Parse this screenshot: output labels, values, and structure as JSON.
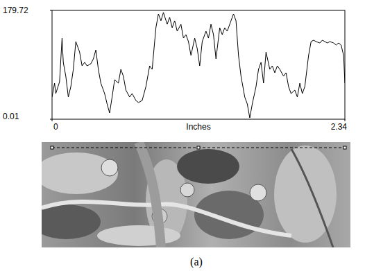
{
  "chart_data": {
    "type": "line",
    "xlabel": "Inches",
    "caption": "(a)",
    "color": "#000000",
    "xlim": [
      0,
      2.34
    ],
    "ylim": [
      0.01,
      179.72
    ],
    "xticks": [
      0,
      2.34
    ],
    "yticks": [
      0.01,
      179.72
    ],
    "x": [
      0.0,
      0.02,
      0.03,
      0.06,
      0.08,
      0.09,
      0.11,
      0.13,
      0.15,
      0.17,
      0.19,
      0.22,
      0.24,
      0.26,
      0.28,
      0.31,
      0.33,
      0.35,
      0.37,
      0.39,
      0.42,
      0.44,
      0.46,
      0.48,
      0.5,
      0.53,
      0.55,
      0.57,
      0.59,
      0.62,
      0.64,
      0.67,
      0.69,
      0.72,
      0.75,
      0.78,
      0.8,
      0.83,
      0.85,
      0.87,
      0.89,
      0.92,
      0.94,
      0.96,
      0.98,
      1.0,
      1.03,
      1.05,
      1.07,
      1.09,
      1.11,
      1.14,
      1.16,
      1.18,
      1.2,
      1.23,
      1.25,
      1.27,
      1.29,
      1.31,
      1.34,
      1.36,
      1.38,
      1.4,
      1.43,
      1.45,
      1.47,
      1.49,
      1.51,
      1.54,
      1.56,
      1.58,
      1.6,
      1.63,
      1.65,
      1.67,
      1.69,
      1.71,
      1.74,
      1.76,
      1.78,
      1.8,
      1.82,
      1.85,
      1.87,
      1.89,
      1.91,
      1.94,
      1.96,
      1.98,
      2.0,
      2.02,
      2.05,
      2.07,
      2.09,
      2.11,
      2.14,
      2.16,
      2.18,
      2.2,
      2.22,
      2.25,
      2.27,
      2.29,
      2.31,
      2.33,
      2.34
    ],
    "values": [
      36.6,
      59.5,
      42.4,
      61.8,
      133.9,
      93.8,
      71.0,
      36.6,
      53.8,
      82.4,
      128.2,
      111.0,
      88.1,
      93.9,
      88.1,
      91.6,
      99.6,
      114.5,
      82.4,
      59.5,
      42.4,
      25.2,
      10.3,
      36.6,
      65.2,
      59.5,
      82.4,
      71.0,
      48.1,
      36.6,
      42.4,
      30.9,
      27.5,
      30.9,
      53.8,
      88.1,
      82.4,
      151.1,
      174.0,
      162.6,
      176.3,
      156.8,
      168.3,
      151.1,
      162.6,
      145.4,
      156.8,
      133.9,
      139.7,
      128.2,
      105.3,
      133.9,
      116.8,
      88.1,
      128.2,
      145.4,
      133.9,
      156.8,
      139.7,
      99.6,
      151.1,
      139.7,
      151.1,
      145.4,
      162.6,
      174.0,
      162.6,
      105.3,
      71.0,
      36.6,
      25.2,
      2.3,
      25.2,
      53.8,
      82.4,
      93.9,
      59.5,
      111.0,
      82.4,
      88.1,
      76.7,
      88.1,
      82.4,
      71.0,
      76.7,
      53.8,
      42.4,
      48.1,
      36.6,
      59.5,
      42.4,
      53.8,
      105.3,
      128.2,
      130.5,
      128.2,
      125.9,
      130.5,
      128.2,
      125.9,
      128.2,
      125.9,
      122.5,
      125.9,
      122.5,
      105.3,
      59.5
    ]
  }
}
